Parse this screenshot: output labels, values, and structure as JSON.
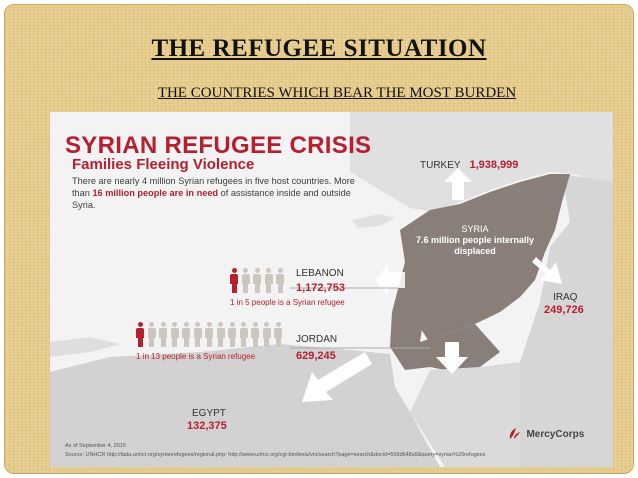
{
  "slide": {
    "title": "THE REFUGEE SITUATION",
    "subtitle": "THE COUNTRIES WHICH BEAR THE MOST BURDEN"
  },
  "infographic": {
    "headline": "SYRIAN REFUGEE CRISIS",
    "subheadline": "Families Fleeing Violence",
    "description_parts": [
      "There are nearly 4 million Syrian refugees in five host countries. More than ",
      "16 million people are in need",
      " of assistance inside and outside Syria."
    ],
    "syria": {
      "name": "SYRIA",
      "note": "7.6 million people internally displaced"
    },
    "countries": [
      {
        "name": "TURKEY",
        "value": "1,938,999"
      },
      {
        "name": "LEBANON",
        "value": "1,172,753",
        "note": "1 in 5 people is a Syrian refugee",
        "ratio": 5
      },
      {
        "name": "JORDAN",
        "value": "629,245",
        "note": "1 in 13 people is a Syrian refugee",
        "ratio": 13
      },
      {
        "name": "IRAQ",
        "value": "249,726"
      },
      {
        "name": "EGYPT",
        "value": "132,375"
      }
    ],
    "date_note": "As of September 4, 2015",
    "source": "Source: UNHCR http://data.unhcr.org/syrianrefugees/regional.php; http://www.unhcr.org/cgi-bin/texis/vtx/search?page=search&docid=559d648a9&query=syrian%20refugees",
    "logo_text": "MercyCorps",
    "colors": {
      "accent": "#b51f2e",
      "map_dark": "#8a7f78",
      "map_light": "#e2e2e2",
      "figure_light": "#cdc6be"
    }
  }
}
